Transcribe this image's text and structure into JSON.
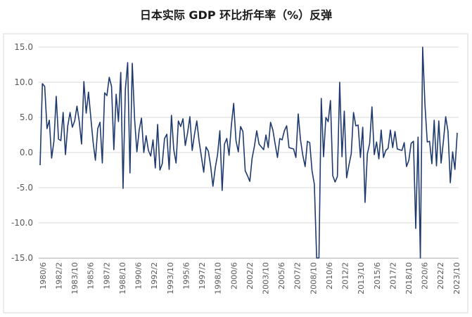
{
  "chart_data": {
    "type": "line",
    "title": "日本实际 GDP 环比折年率（%）反弹",
    "xlabel": "",
    "ylabel": "",
    "ylim": [
      -15,
      15
    ],
    "yticks": [
      "15.0",
      "10.0",
      "5.0",
      "0.0",
      "-5.0",
      "-10.0",
      "-15.0"
    ],
    "ytick_values": [
      15,
      10,
      5,
      0,
      -5,
      -10,
      -15
    ],
    "xticks": [
      "1980/6",
      "1982/2",
      "1983/10",
      "1985/6",
      "1987/2",
      "1988/10",
      "1990/6",
      "1992/2",
      "1993/10",
      "1995/6",
      "1997/2",
      "1998/10",
      "2000/6",
      "2002/2",
      "2003/10",
      "2005/6",
      "2007/2",
      "2008/10",
      "2010/6",
      "2012/2",
      "2013/10",
      "2015/6",
      "2017/2",
      "2018/10",
      "2020/6",
      "2022/2",
      "2023/10"
    ],
    "grid": "horizontal",
    "line_color": "#1f3a6e",
    "x_start": "1980/6",
    "x_frequency": "quarterly",
    "values": [
      -1.8,
      9.8,
      9.4,
      3.4,
      4.6,
      -0.8,
      1.6,
      8.0,
      1.9,
      1.7,
      5.7,
      -0.3,
      3.8,
      5.7,
      3.6,
      4.5,
      6.6,
      4.4,
      1.2,
      10.1,
      5.6,
      8.6,
      5.0,
      1.5,
      -1.1,
      3.4,
      4.3,
      -1.5,
      8.5,
      8.1,
      10.7,
      9.4,
      0.4,
      8.3,
      4.4,
      11.4,
      -5.1,
      9.0,
      12.8,
      -2.9,
      12.7,
      4.8,
      0.1,
      3.2,
      4.9,
      0.0,
      2.4,
      0.3,
      -0.5,
      1.8,
      -2.2,
      4.0,
      -2.5,
      -1.6,
      2.0,
      2.6,
      -2.4,
      5.3,
      0.4,
      -1.5,
      4.5,
      3.7,
      4.8,
      1.0,
      2.8,
      5.1,
      0.3,
      2.6,
      4.5,
      1.6,
      -0.6,
      -2.8,
      0.8,
      0.2,
      -1.9,
      -4.8,
      -2.2,
      -0.3,
      3.1,
      -5.4,
      1.2,
      2.0,
      -0.4,
      3.9,
      7.0,
      1.7,
      0.1,
      3.7,
      3.0,
      -2.6,
      -3.3,
      -4.1,
      -0.8,
      0.9,
      3.1,
      1.2,
      0.8,
      0.4,
      2.5,
      0.7,
      4.3,
      3.2,
      1.2,
      -0.7,
      2.0,
      1.8,
      3.1,
      3.8,
      0.7,
      0.6,
      0.5,
      -0.7,
      5.5,
      1.8,
      -0.4,
      -2.0,
      1.6,
      1.4,
      -2.6,
      -4.5,
      -15.0,
      -15.0,
      7.7,
      -0.6,
      5.0,
      4.4,
      7.4,
      -3.3,
      -4.2,
      -3.4,
      10.0,
      -0.6,
      5.9,
      -3.6,
      -1.8,
      -0.2,
      5.7,
      3.8,
      3.9,
      -0.7,
      3.6,
      -7.1,
      -0.2,
      1.3,
      6.5,
      -0.3,
      1.5,
      -0.9,
      3.2,
      -0.7,
      0.3,
      0.6,
      3.2,
      0.7,
      3.0,
      0.5,
      0.4,
      0.3,
      1.4,
      -2.0,
      -1.1,
      1.3,
      1.6,
      -10.8,
      2.2,
      -15.0,
      15.0,
      6.8,
      1.5,
      1.6,
      -1.6,
      4.6,
      -1.9,
      4.5,
      -1.5,
      1.6,
      5.1,
      3.0,
      -4.3,
      0.1,
      -2.4,
      2.8
    ]
  }
}
